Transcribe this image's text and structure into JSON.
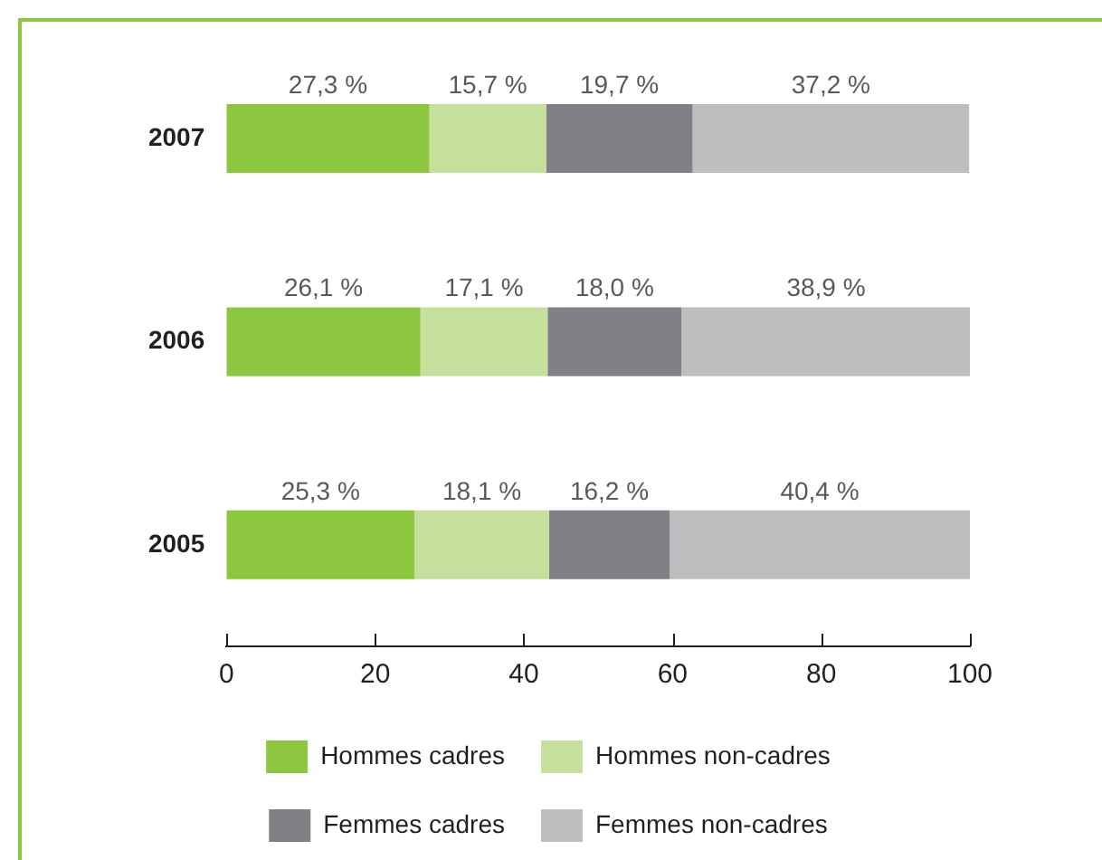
{
  "chart_data": {
    "type": "bar",
    "orientation": "horizontal",
    "stacked": true,
    "categories": [
      "2007",
      "2006",
      "2005"
    ],
    "series": [
      {
        "name": "Hommes cadres",
        "color": "#8dc63f",
        "values": [
          27.3,
          26.1,
          25.3
        ],
        "value_labels": [
          "27,3 %",
          "26,1 %",
          "25,3 %"
        ]
      },
      {
        "name": "Hommes non-cadres",
        "color": "#c5e09d",
        "values": [
          15.7,
          17.1,
          18.1
        ],
        "value_labels": [
          "15,7 %",
          "17,1 %",
          "18,1 %"
        ]
      },
      {
        "name": "Femmes cadres",
        "color": "#808184",
        "values": [
          19.7,
          18.0,
          16.2
        ],
        "value_labels": [
          "19,7 %",
          "18,0 %",
          "16,2 %"
        ]
      },
      {
        "name": "Femmes non-cadres",
        "color": "#bcbec0",
        "values": [
          37.2,
          38.9,
          40.4
        ],
        "value_labels": [
          "37,2 %",
          "38,9 %",
          "40,4 %"
        ]
      }
    ],
    "xlim": [
      0,
      100
    ],
    "xticks": [
      0,
      20,
      40,
      60,
      80,
      100
    ],
    "grid": false,
    "legend": "bottom"
  }
}
